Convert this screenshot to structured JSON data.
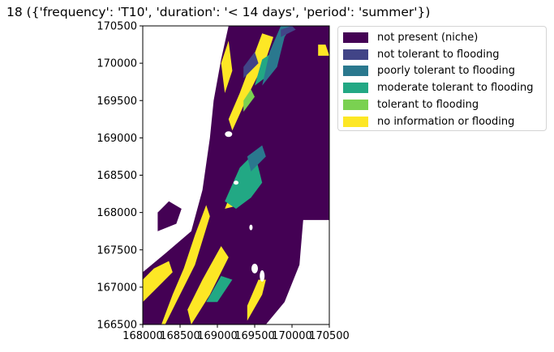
{
  "chart_data": {
    "type": "heatmap",
    "title": "18 ({'frequency': 'T10', 'duration': '< 14 days', 'period': 'summer'})",
    "xlabel": "",
    "ylabel": "",
    "xlim": [
      168000,
      170500
    ],
    "ylim": [
      166500,
      170500
    ],
    "x_ticks": [
      168000,
      168500,
      169000,
      169500,
      170000,
      170500
    ],
    "y_ticks": [
      166500,
      167000,
      167500,
      168000,
      168500,
      169000,
      169500,
      170000,
      170500
    ],
    "x_tick_labels": [
      "168000",
      "168500",
      "169000",
      "169500",
      "170000",
      "170500"
    ],
    "y_tick_labels": [
      "166500",
      "167000",
      "167500",
      "168000",
      "168500",
      "169000",
      "169500",
      "170000",
      "170500"
    ],
    "grid": false,
    "legend_position": "outside-upper-right",
    "categories": [
      {
        "label": "not present (niche)",
        "color": "#440154"
      },
      {
        "label": "not tolerant to flooding",
        "color": "#414487"
      },
      {
        "label": "poorly tolerant to flooding",
        "color": "#2a788e"
      },
      {
        "label": "moderate tolerant to flooding",
        "color": "#22a884"
      },
      {
        "label": "tolerant to flooding",
        "color": "#7ad151"
      },
      {
        "label": "no information or flooding",
        "color": "#fde725"
      }
    ],
    "regions": [
      {
        "category": 0,
        "points": [
          [
            168000,
            166500
          ],
          [
            168000,
            167200
          ],
          [
            168300,
            167450
          ],
          [
            168650,
            167750
          ],
          [
            168800,
            168300
          ],
          [
            168900,
            169000
          ],
          [
            168950,
            169500
          ],
          [
            169050,
            170050
          ],
          [
            169150,
            170500
          ],
          [
            170500,
            170500
          ],
          [
            170500,
            167900
          ],
          [
            170150,
            167900
          ],
          [
            170100,
            167300
          ],
          [
            169900,
            166800
          ],
          [
            169650,
            166500
          ]
        ]
      },
      {
        "category": 0,
        "points": [
          [
            168200,
            167750
          ],
          [
            168450,
            167850
          ],
          [
            168520,
            168050
          ],
          [
            168350,
            168150
          ],
          [
            168200,
            168000
          ]
        ]
      },
      {
        "category": 5,
        "points": [
          [
            168300,
            166500
          ],
          [
            168450,
            166800
          ],
          [
            168700,
            167300
          ],
          [
            168900,
            167950
          ],
          [
            168850,
            168100
          ],
          [
            168700,
            167700
          ],
          [
            168550,
            167250
          ],
          [
            168400,
            166900
          ],
          [
            168250,
            166500
          ]
        ]
      },
      {
        "category": 5,
        "points": [
          [
            168000,
            166800
          ],
          [
            168200,
            167000
          ],
          [
            168400,
            167200
          ],
          [
            168350,
            167350
          ],
          [
            168150,
            167250
          ],
          [
            168000,
            167100
          ]
        ]
      },
      {
        "category": 5,
        "points": [
          [
            168650,
            166500
          ],
          [
            168900,
            166900
          ],
          [
            169150,
            167400
          ],
          [
            169050,
            167550
          ],
          [
            168800,
            167100
          ],
          [
            168600,
            166700
          ]
        ]
      },
      {
        "category": 5,
        "points": [
          [
            169200,
            169100
          ],
          [
            169450,
            169650
          ],
          [
            169650,
            170050
          ],
          [
            169750,
            170350
          ],
          [
            169600,
            170400
          ],
          [
            169450,
            170000
          ],
          [
            169300,
            169600
          ],
          [
            169150,
            169250
          ]
        ]
      },
      {
        "category": 5,
        "points": [
          [
            169100,
            169600
          ],
          [
            169200,
            169900
          ],
          [
            169150,
            170300
          ],
          [
            169050,
            170000
          ]
        ]
      },
      {
        "category": 5,
        "points": [
          [
            169100,
            168050
          ],
          [
            169200,
            168300
          ],
          [
            169350,
            168250
          ],
          [
            169300,
            168100
          ]
        ]
      },
      {
        "category": 5,
        "points": [
          [
            169400,
            166550
          ],
          [
            169600,
            166900
          ],
          [
            169650,
            167100
          ],
          [
            169550,
            167100
          ],
          [
            169400,
            166750
          ]
        ]
      },
      {
        "category": 5,
        "points": [
          [
            170350,
            170250
          ],
          [
            170450,
            170250
          ],
          [
            170500,
            170100
          ],
          [
            170350,
            170100
          ]
        ]
      },
      {
        "category": 4,
        "points": [
          [
            169350,
            169350
          ],
          [
            169500,
            169550
          ],
          [
            169450,
            169650
          ],
          [
            169350,
            169500
          ]
        ]
      },
      {
        "category": 3,
        "points": [
          [
            169100,
            168150
          ],
          [
            169300,
            168600
          ],
          [
            169500,
            168800
          ],
          [
            169600,
            168400
          ],
          [
            169450,
            168200
          ],
          [
            169250,
            168050
          ]
        ]
      },
      {
        "category": 3,
        "points": [
          [
            169500,
            169700
          ],
          [
            169700,
            169850
          ],
          [
            169750,
            170150
          ],
          [
            169600,
            170050
          ]
        ]
      },
      {
        "category": 3,
        "points": [
          [
            168850,
            166800
          ],
          [
            169050,
            167150
          ],
          [
            169200,
            167100
          ],
          [
            169000,
            166800
          ]
        ]
      },
      {
        "category": 2,
        "points": [
          [
            169600,
            169700
          ],
          [
            169800,
            169950
          ],
          [
            169900,
            170350
          ],
          [
            170000,
            170500
          ],
          [
            169850,
            170500
          ],
          [
            169700,
            170150
          ]
        ]
      },
      {
        "category": 2,
        "points": [
          [
            169450,
            168550
          ],
          [
            169650,
            168750
          ],
          [
            169600,
            168900
          ],
          [
            169400,
            168750
          ]
        ]
      },
      {
        "category": 1,
        "points": [
          [
            169350,
            169800
          ],
          [
            169550,
            170000
          ],
          [
            169500,
            170150
          ],
          [
            169350,
            169950
          ]
        ]
      },
      {
        "category": 1,
        "points": [
          [
            169850,
            170350
          ],
          [
            170050,
            170450
          ],
          [
            170000,
            170500
          ],
          [
            169850,
            170450
          ]
        ]
      }
    ]
  }
}
